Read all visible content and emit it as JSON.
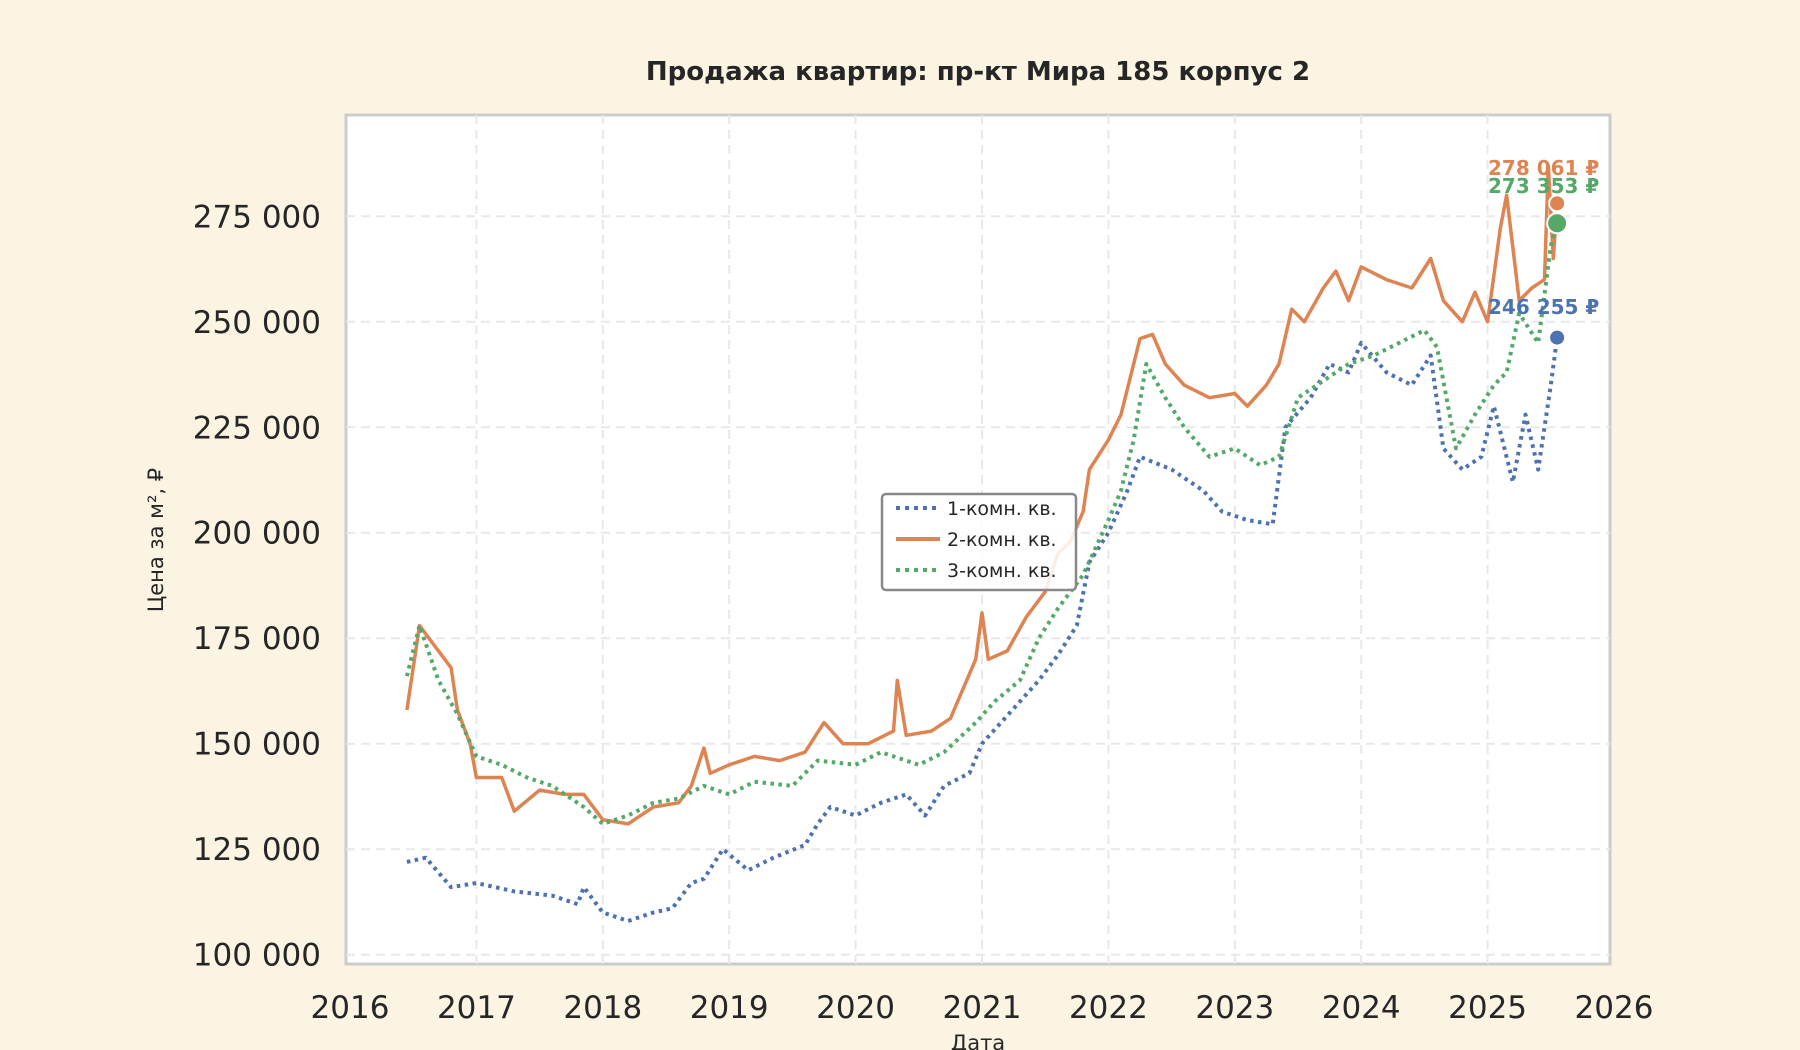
{
  "chart_data": {
    "type": "line",
    "title": "Продажа квартир: пр-кт Мира 185 корпус 2",
    "xlabel": "Дата",
    "ylabel": "Цена за м², ₽",
    "xlim": [
      2016,
      2026
    ],
    "ylim": [
      97800,
      299000
    ],
    "grid": true,
    "legend_position": "center",
    "x_ticks": [
      2016,
      2017,
      2018,
      2019,
      2020,
      2021,
      2022,
      2023,
      2024,
      2025,
      2026
    ],
    "x_tick_labels": [
      "2016",
      "2017",
      "2018",
      "2019",
      "2020",
      "2021",
      "2022",
      "2023",
      "2024",
      "2025",
      "2026"
    ],
    "y_ticks": [
      100000,
      125000,
      150000,
      175000,
      200000,
      225000,
      250000,
      275000
    ],
    "y_tick_labels": [
      "100 000",
      "125 000",
      "150 000",
      "175 000",
      "200 000",
      "225 000",
      "250 000",
      "275 000"
    ],
    "series": [
      {
        "name": "1-комн. кв.",
        "color": "#4c72b0",
        "style": "dotted",
        "x": [
          2016.45,
          2016.6,
          2016.8,
          2017.0,
          2017.3,
          2017.6,
          2017.8,
          2017.85,
          2018.0,
          2018.2,
          2018.4,
          2018.55,
          2018.7,
          2018.8,
          2018.95,
          2019.15,
          2019.35,
          2019.6,
          2019.7,
          2019.8,
          2020.0,
          2020.2,
          2020.4,
          2020.55,
          2020.7,
          2020.9,
          2021.0,
          2021.15,
          2021.3,
          2021.45,
          2021.6,
          2021.75,
          2021.85,
          2022.0,
          2022.15,
          2022.25,
          2022.5,
          2022.75,
          2022.9,
          2023.1,
          2023.3,
          2023.4,
          2023.6,
          2023.75,
          2023.9,
          2024.0,
          2024.2,
          2024.4,
          2024.55,
          2024.65,
          2024.8,
          2024.95,
          2025.05,
          2025.2,
          2025.3,
          2025.4,
          2025.5,
          2025.55
        ],
        "values": [
          122000,
          123000,
          116000,
          117000,
          115000,
          114000,
          112000,
          116000,
          110000,
          108000,
          110000,
          111000,
          117000,
          118000,
          125000,
          120000,
          123000,
          126000,
          131000,
          135000,
          133000,
          136000,
          138000,
          133000,
          140000,
          143000,
          150000,
          155000,
          160000,
          165000,
          171000,
          178000,
          193000,
          200000,
          210000,
          218000,
          215000,
          210000,
          205000,
          203000,
          202000,
          225000,
          232000,
          240000,
          238000,
          245000,
          238000,
          235000,
          242000,
          220000,
          215000,
          218000,
          230000,
          212000,
          228000,
          215000,
          235000,
          246255
        ],
        "last_label": "246 255 ₽"
      },
      {
        "name": "2-комн. кв.",
        "color": "#dd8452",
        "style": "solid",
        "x": [
          2016.45,
          2016.55,
          2016.8,
          2016.85,
          2016.95,
          2017.0,
          2017.2,
          2017.3,
          2017.5,
          2017.7,
          2017.85,
          2018.0,
          2018.2,
          2018.4,
          2018.6,
          2018.7,
          2018.8,
          2018.85,
          2019.0,
          2019.2,
          2019.4,
          2019.6,
          2019.75,
          2019.9,
          2020.1,
          2020.3,
          2020.33,
          2020.4,
          2020.6,
          2020.75,
          2020.85,
          2020.95,
          2021.0,
          2021.05,
          2021.2,
          2021.35,
          2021.5,
          2021.6,
          2021.7,
          2021.8,
          2021.85,
          2022.0,
          2022.1,
          2022.25,
          2022.35,
          2022.45,
          2022.6,
          2022.8,
          2023.0,
          2023.1,
          2023.25,
          2023.35,
          2023.45,
          2023.55,
          2023.7,
          2023.8,
          2023.9,
          2024.0,
          2024.2,
          2024.4,
          2024.55,
          2024.65,
          2024.8,
          2024.9,
          2025.0,
          2025.1,
          2025.15,
          2025.25,
          2025.35,
          2025.45,
          2025.48,
          2025.52,
          2025.55
        ],
        "values": [
          158000,
          178000,
          168000,
          158000,
          150000,
          142000,
          142000,
          134000,
          139000,
          138000,
          138000,
          132000,
          131000,
          135000,
          136000,
          140000,
          149000,
          143000,
          145000,
          147000,
          146000,
          148000,
          155000,
          150000,
          150000,
          153000,
          165000,
          152000,
          153000,
          156000,
          163000,
          170000,
          181000,
          170000,
          172000,
          180000,
          186000,
          195000,
          198000,
          205000,
          215000,
          222000,
          228000,
          246000,
          247000,
          240000,
          235000,
          232000,
          233000,
          230000,
          235000,
          240000,
          253000,
          250000,
          258000,
          262000,
          255000,
          263000,
          260000,
          258000,
          265000,
          255000,
          250000,
          257000,
          250000,
          272000,
          280000,
          255000,
          258000,
          260000,
          287000,
          265000,
          278061
        ],
        "last_label": "278 061 ₽"
      },
      {
        "name": "3-комн. кв.",
        "color": "#55a868",
        "style": "dotted",
        "x": [
          2016.45,
          2016.55,
          2016.7,
          2016.85,
          2017.0,
          2017.2,
          2017.4,
          2017.6,
          2017.85,
          2018.0,
          2018.2,
          2018.4,
          2018.6,
          2018.8,
          2019.0,
          2019.2,
          2019.5,
          2019.7,
          2020.0,
          2020.2,
          2020.5,
          2020.7,
          2020.95,
          2021.1,
          2021.3,
          2021.45,
          2021.6,
          2021.8,
          2022.0,
          2022.1,
          2022.2,
          2022.3,
          2022.45,
          2022.6,
          2022.8,
          2023.0,
          2023.2,
          2023.35,
          2023.5,
          2023.7,
          2023.9,
          2024.1,
          2024.3,
          2024.5,
          2024.6,
          2024.75,
          2024.9,
          2025.05,
          2025.15,
          2025.25,
          2025.4,
          2025.5,
          2025.55
        ],
        "values": [
          166000,
          178000,
          165000,
          157000,
          147000,
          145000,
          142000,
          140000,
          135000,
          131000,
          133000,
          136000,
          137000,
          140000,
          138000,
          141000,
          140000,
          146000,
          145000,
          148000,
          145000,
          148000,
          155000,
          160000,
          165000,
          175000,
          182000,
          190000,
          203000,
          210000,
          222000,
          240000,
          232000,
          225000,
          218000,
          220000,
          216000,
          218000,
          232000,
          236000,
          240000,
          242000,
          245000,
          248000,
          244000,
          220000,
          228000,
          235000,
          238000,
          252000,
          245000,
          268000,
          273353
        ],
        "last_label": "273 353 ₽"
      }
    ]
  }
}
